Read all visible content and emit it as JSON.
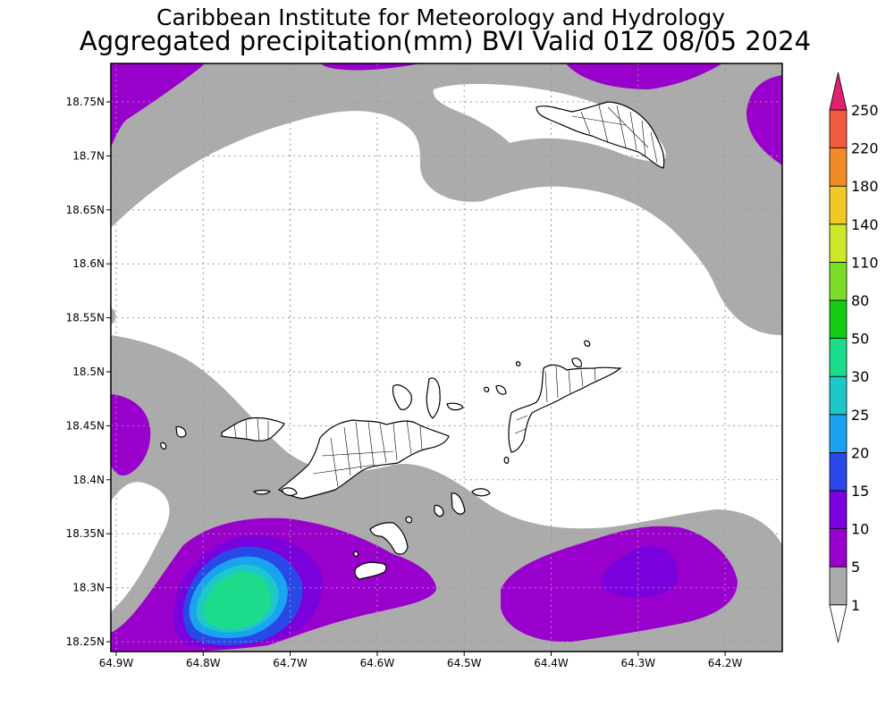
{
  "title": {
    "line1": "Caribbean Institute for Meteorology and Hydrology",
    "line2": "Aggregated precipitation(mm) BVI Valid 01Z 08/05 2024"
  },
  "map": {
    "lon_ticks": [
      "64.9W",
      "64.8W",
      "64.7W",
      "64.6W",
      "64.5W",
      "64.4W",
      "64.3W",
      "64.2W"
    ],
    "lat_ticks": [
      "18.75N",
      "18.7N",
      "18.65N",
      "18.6N",
      "18.55N",
      "18.5N",
      "18.45N",
      "18.4N",
      "18.35N",
      "18.3N",
      "18.25N"
    ],
    "lon_values": [
      -64.9,
      -64.8,
      -64.7,
      -64.6,
      -64.5,
      -64.4,
      -64.3,
      -64.2
    ],
    "lat_values": [
      18.75,
      18.7,
      18.65,
      18.6,
      18.55,
      18.5,
      18.45,
      18.4,
      18.35,
      18.3,
      18.25
    ]
  },
  "colorbar": {
    "levels": [
      "1",
      "5",
      "10",
      "15",
      "20",
      "25",
      "30",
      "50",
      "80",
      "110",
      "140",
      "180",
      "220",
      "250"
    ],
    "colors": [
      "#ababab",
      "#9a00cc",
      "#7a00dc",
      "#2849e8",
      "#1aa4f0",
      "#1cc8c8",
      "#1cdc8c",
      "#12cc12",
      "#7cdc28",
      "#cce828",
      "#f0c828",
      "#f08c28",
      "#f05a40",
      "#e63c82"
    ],
    "under_color": "#ffffff",
    "over_color": "#e0226e"
  }
}
